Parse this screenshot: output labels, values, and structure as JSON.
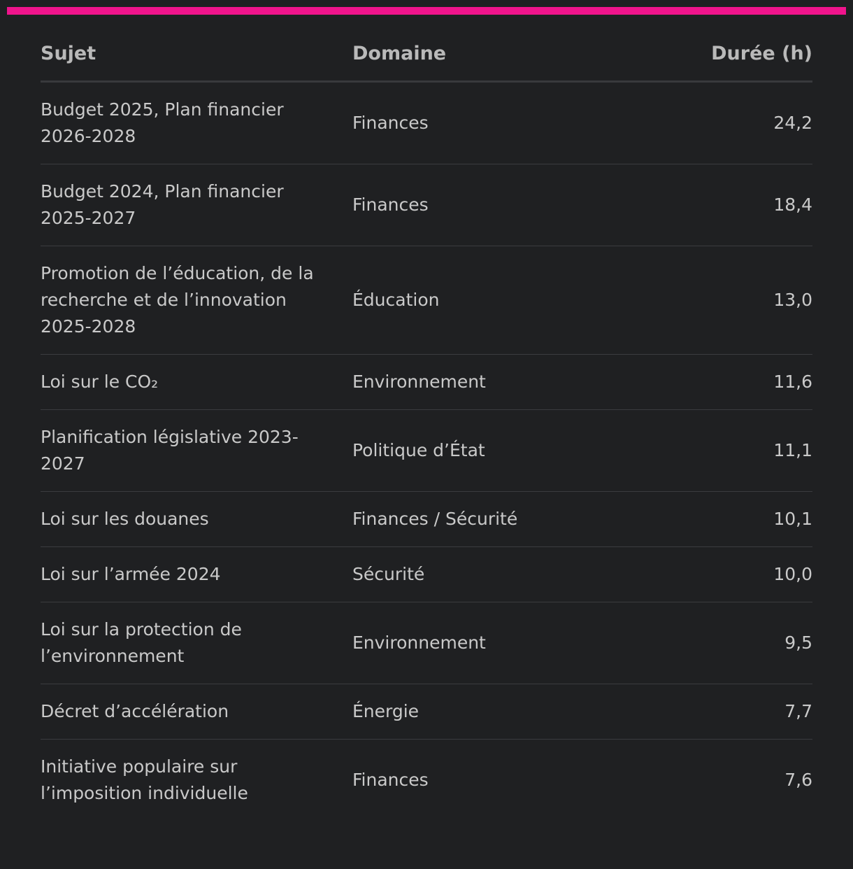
{
  "accent_color": "#f0148c",
  "table": {
    "headers": {
      "subject": "Sujet",
      "domain": "Domaine",
      "duration": "Durée (h)"
    },
    "rows": [
      {
        "subject": "Budget 2025, Plan financier 2026-2028",
        "domain": "Finances",
        "duration": "24,2"
      },
      {
        "subject": "Budget 2024, Plan financier 2025-2027",
        "domain": "Finances",
        "duration": "18,4"
      },
      {
        "subject": "Promotion de l’éducation, de la recherche et de l’innovation 2025-2028",
        "domain": "Éducation",
        "duration": "13,0"
      },
      {
        "subject": "Loi sur le CO₂",
        "domain": "Environnement",
        "duration": "11,6"
      },
      {
        "subject": "Planification législative 2023-2027",
        "domain": "Politique d’État",
        "duration": "11,1"
      },
      {
        "subject": "Loi sur les douanes",
        "domain": "Finances / Sécurité",
        "duration": "10,1"
      },
      {
        "subject": "Loi sur l’armée 2024",
        "domain": "Sécurité",
        "duration": "10,0"
      },
      {
        "subject": "Loi sur la protection de l’environnement",
        "domain": "Environnement",
        "duration": "9,5"
      },
      {
        "subject": "Décret d’accélération",
        "domain": "Énergie",
        "duration": "7,7"
      },
      {
        "subject": "Initiative populaire sur l’imposition individuelle",
        "domain": "Finances",
        "duration": "7,6"
      }
    ]
  }
}
